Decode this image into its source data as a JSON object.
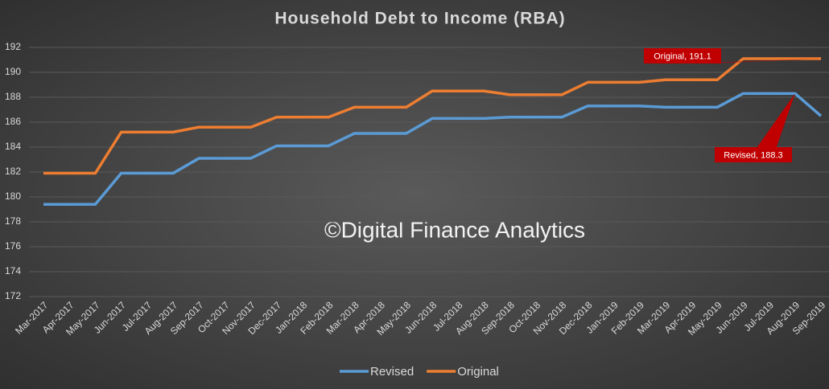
{
  "chart_data": {
    "type": "line",
    "title": "Household Debt to Income (RBA)",
    "categories": [
      "Mar-2017",
      "Apr-2017",
      "May-2017",
      "Jun-2017",
      "Jul-2017",
      "Aug-2017",
      "Sep-2017",
      "Oct-2017",
      "Nov-2017",
      "Dec-2017",
      "Jan-2018",
      "Feb-2018",
      "Mar-2018",
      "Apr-2018",
      "May-2018",
      "Jun-2018",
      "Jul-2018",
      "Aug-2018",
      "Sep-2018",
      "Oct-2018",
      "Nov-2018",
      "Dec-2018",
      "Jan-2019",
      "Feb-2019",
      "Mar-2019",
      "Apr-2019",
      "May-2019",
      "Jun-2019",
      "Jul-2019",
      "Aug-2019",
      "Sep-2019"
    ],
    "series": [
      {
        "name": "Revised",
        "color": "#5b9bd5",
        "values": [
          179.4,
          179.4,
          179.4,
          181.9,
          181.9,
          181.9,
          183.1,
          183.1,
          183.1,
          184.1,
          184.1,
          184.1,
          185.1,
          185.1,
          185.1,
          186.3,
          186.3,
          186.3,
          186.4,
          186.4,
          186.4,
          187.3,
          187.3,
          187.3,
          187.2,
          187.2,
          187.2,
          188.3,
          188.3,
          188.3,
          186.5
        ]
      },
      {
        "name": "Original",
        "color": "#ed7d31",
        "values": [
          181.9,
          181.9,
          181.9,
          185.2,
          185.2,
          185.2,
          185.6,
          185.6,
          185.6,
          186.4,
          186.4,
          186.4,
          187.2,
          187.2,
          187.2,
          188.5,
          188.5,
          188.5,
          188.2,
          188.2,
          188.2,
          189.2,
          189.2,
          189.2,
          189.4,
          189.4,
          189.4,
          191.1,
          191.1,
          191.1,
          191.1
        ]
      }
    ],
    "ylim": [
      172,
      192
    ],
    "yticks": [
      172,
      174,
      176,
      178,
      180,
      182,
      184,
      186,
      188,
      190,
      192
    ],
    "grid": true,
    "annotations": [
      {
        "text": "Original, 191.1",
        "series": 1,
        "index": 30
      },
      {
        "text": "Revised, 188.3",
        "series": 0,
        "index": 29
      }
    ],
    "watermark": "©Digital Finance Analytics"
  }
}
